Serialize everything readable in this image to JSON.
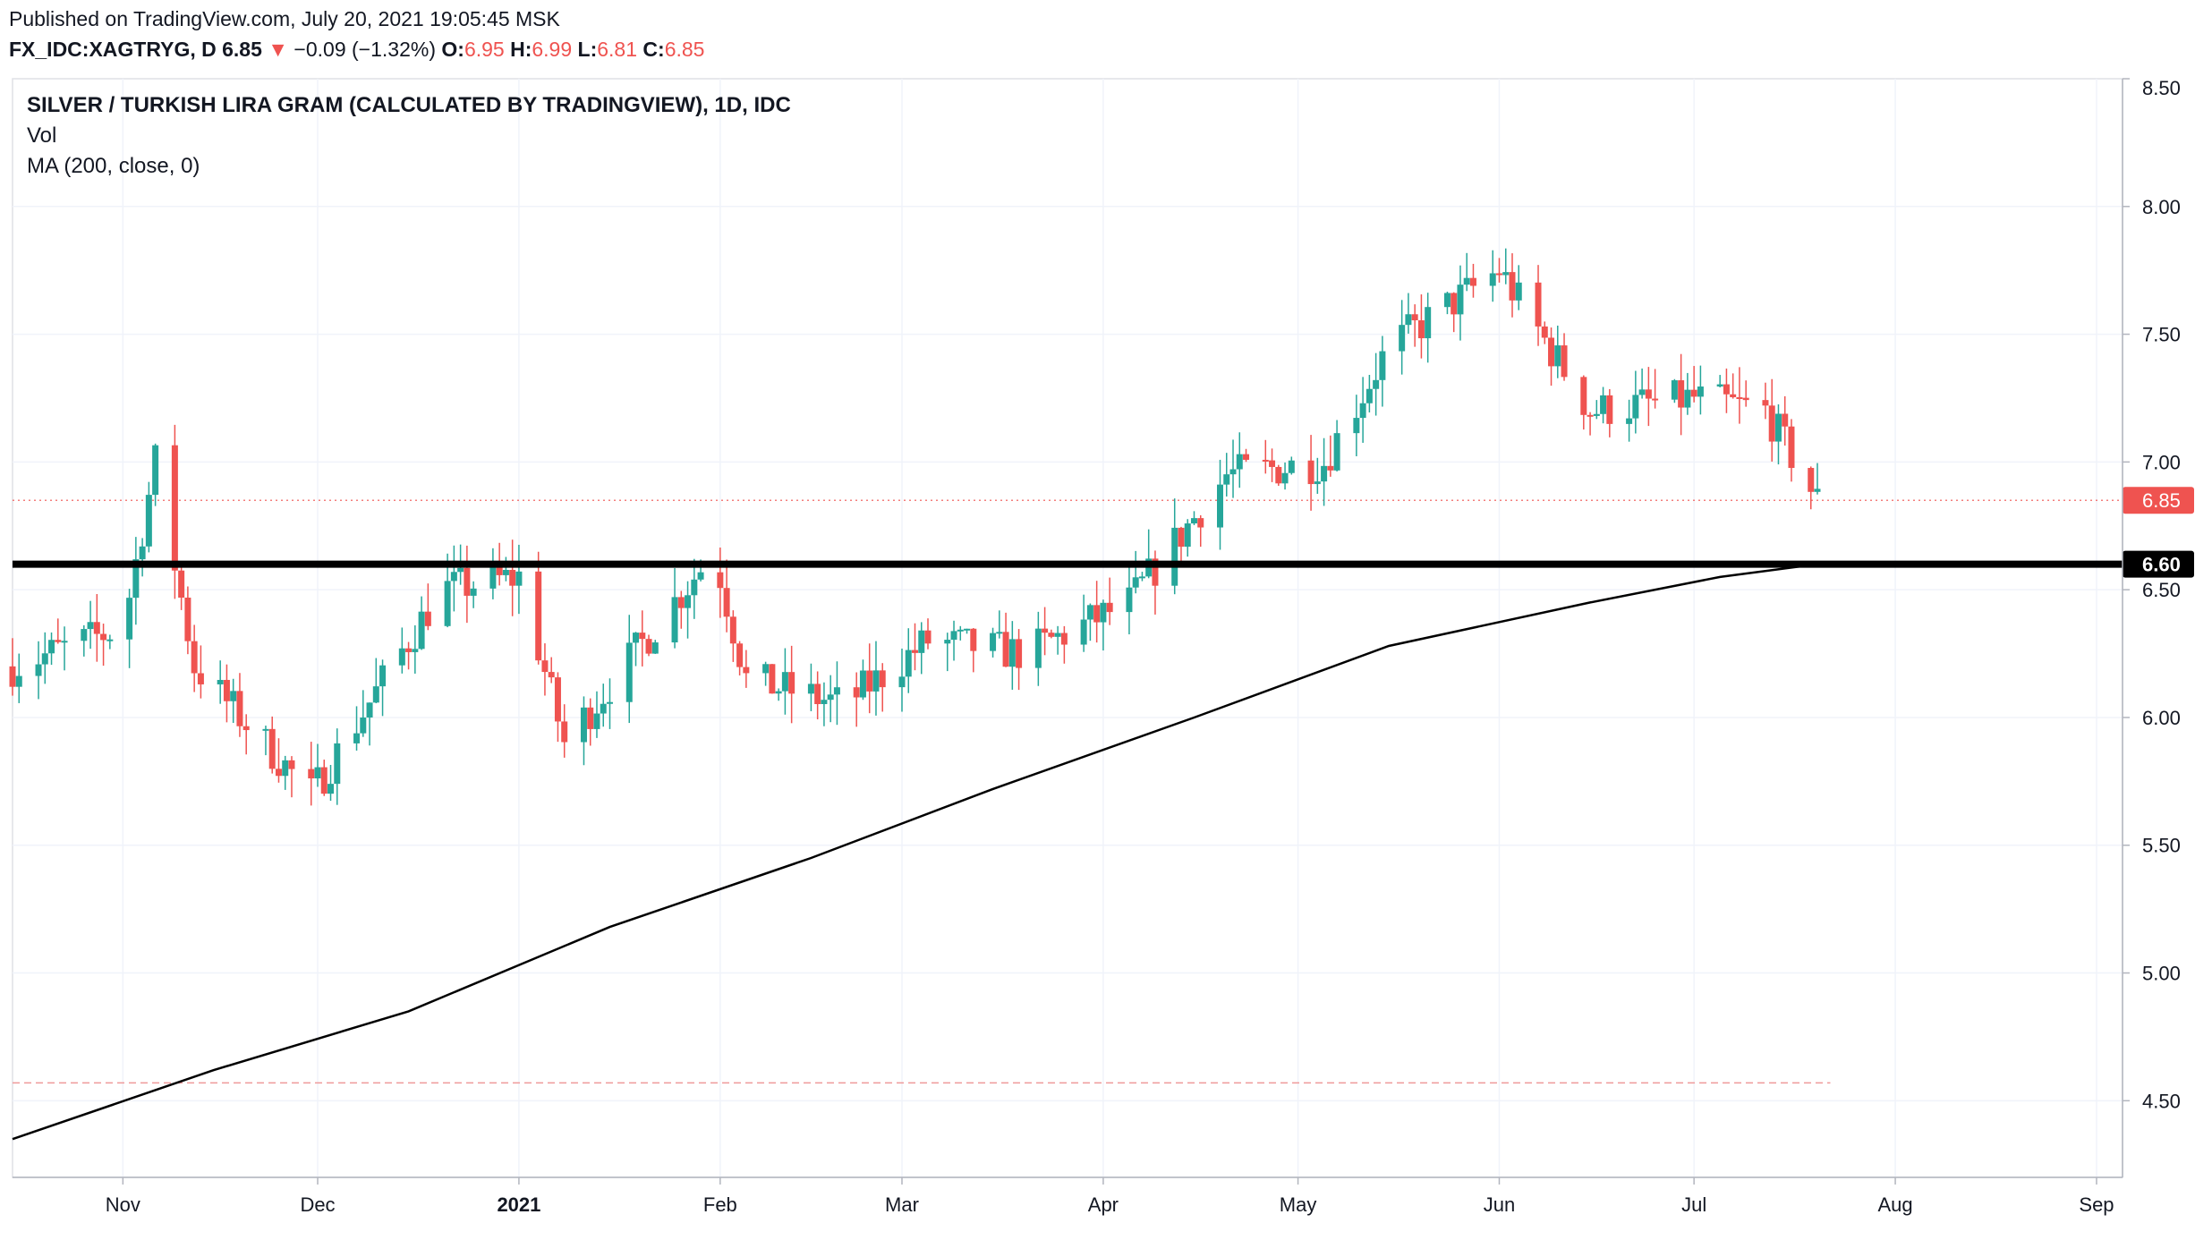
{
  "header": {
    "published": "Published on TradingView.com, July 20, 2021 19:05:45 MSK",
    "symbol": "FX_IDC:XAGTRYG, D",
    "last": "6.85",
    "change": "−0.09 (−1.32%)",
    "open_label": "O:",
    "open": "6.95",
    "high_label": "H:",
    "high": "6.99",
    "low_label": "L:",
    "low": "6.81",
    "close_label": "C:",
    "close": "6.85"
  },
  "legend": {
    "title": "SILVER / TURKISH LIRA GRAM (CALCULATED BY TRADINGVIEW), 1D, IDC",
    "vol": "Vol",
    "ma": "MA (200, close, 0)"
  },
  "colors": {
    "up": "#26a69a",
    "down": "#ef5350",
    "ma": "#000000",
    "support": "#000000",
    "grid": "#f0f3fa"
  },
  "chart_data": {
    "type": "candlestick",
    "title": "SILVER / TURKISH LIRA GRAM (CALCULATED BY TRADINGVIEW), 1D, IDC",
    "ylim": [
      4.2,
      8.5
    ],
    "y_ticks": [
      "8.50",
      "8.00",
      "7.50",
      "7.00",
      "6.50",
      "6.00",
      "5.50",
      "5.00",
      "4.50"
    ],
    "x_ticks": [
      "Nov",
      "Dec",
      "2021",
      "Feb",
      "Mar",
      "Apr",
      "May",
      "Jun",
      "Jul",
      "Aug",
      "Sep"
    ],
    "x_range": [
      "2020-10-15",
      "2021-09-05"
    ],
    "last_price": 6.85,
    "last_price_label": "6.85",
    "support_level": 6.6,
    "support_label": "6.60",
    "lower_dashed_level": 4.57,
    "ma200_points": [
      {
        "date": "2020-10-15",
        "value": 4.35
      },
      {
        "date": "2020-11-15",
        "value": 4.62
      },
      {
        "date": "2020-12-15",
        "value": 4.85
      },
      {
        "date": "2021-01-15",
        "value": 5.18
      },
      {
        "date": "2021-02-15",
        "value": 5.45
      },
      {
        "date": "2021-03-15",
        "value": 5.72
      },
      {
        "date": "2021-04-15",
        "value": 6.0
      },
      {
        "date": "2021-05-15",
        "value": 6.28
      },
      {
        "date": "2021-06-15",
        "value": 6.45
      },
      {
        "date": "2021-07-05",
        "value": 6.55
      },
      {
        "date": "2021-07-20",
        "value": 6.6
      }
    ],
    "key_points": [
      {
        "date": "2020-10-15",
        "value": 6.2
      },
      {
        "date": "2020-11-01",
        "value": 6.35
      },
      {
        "date": "2020-11-06",
        "value": 7.0
      },
      {
        "date": "2020-11-12",
        "value": 6.2
      },
      {
        "date": "2020-11-30",
        "value": 5.7
      },
      {
        "date": "2020-12-20",
        "value": 6.5
      },
      {
        "date": "2021-01-01",
        "value": 6.55
      },
      {
        "date": "2021-01-08",
        "value": 5.9
      },
      {
        "date": "2021-01-31",
        "value": 6.65
      },
      {
        "date": "2021-02-05",
        "value": 6.15
      },
      {
        "date": "2021-02-20",
        "value": 6.05
      },
      {
        "date": "2021-03-05",
        "value": 6.3
      },
      {
        "date": "2021-03-20",
        "value": 6.25
      },
      {
        "date": "2021-04-05",
        "value": 6.45
      },
      {
        "date": "2021-04-20",
        "value": 6.95
      },
      {
        "date": "2021-05-05",
        "value": 7.0
      },
      {
        "date": "2021-05-15",
        "value": 7.45
      },
      {
        "date": "2021-06-01",
        "value": 7.75
      },
      {
        "date": "2021-06-15",
        "value": 7.2
      },
      {
        "date": "2021-07-01",
        "value": 7.25
      },
      {
        "date": "2021-07-12",
        "value": 7.2
      },
      {
        "date": "2021-07-20",
        "value": 6.85
      }
    ]
  }
}
